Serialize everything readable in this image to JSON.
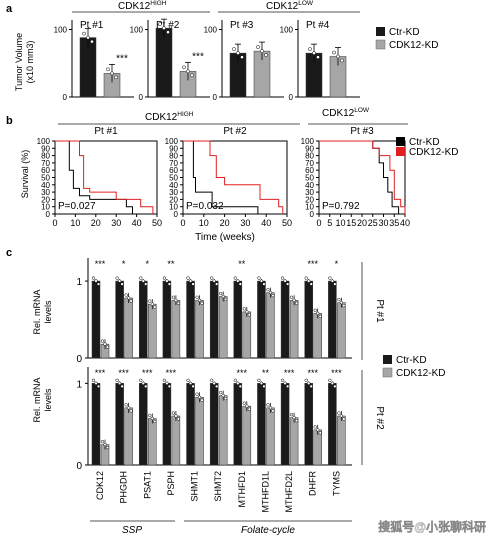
{
  "panels": {
    "a": "a",
    "b": "b",
    "c": "c"
  },
  "colors": {
    "ctr": "#1a1a1a",
    "kd": "#a6a6a6",
    "km_ctr": "#000000",
    "km_kd": "#e02020"
  },
  "panel_a": {
    "group_high": "CDK12",
    "group_high_sup": "HIGH",
    "group_low": "CDK12",
    "group_low_sup": "LOW",
    "ylabel_line1": "Tumor Volume",
    "ylabel_line2": "(x10 mm3)",
    "legend": [
      "Ctr-KD",
      "CDK12-KD"
    ]
  },
  "panel_b": {
    "group_high": "CDK12",
    "group_high_sup": "HIGH",
    "group_low": "CDK12",
    "group_low_sup": "LOW",
    "ylabel": "Survival (%)",
    "xlabel": "Time (weeks)",
    "legend": [
      "Ctr-KD",
      "CDK12-KD"
    ]
  },
  "panel_c": {
    "ylabel_line1": "Rel. mRNA",
    "ylabel_line2": "levels",
    "rows": [
      "Pt #1",
      "Pt #2"
    ],
    "legend": [
      "Ctr-KD",
      "CDK12-KD"
    ],
    "group_ssp": "SSP",
    "group_folate": "Folate-cycle"
  },
  "watermark": "搜狐号@小张聊科研",
  "chart_data": [
    {
      "type": "bar",
      "title": "Pt #1",
      "categories": [
        "Ctr-KD",
        "CDK12-KD"
      ],
      "values": [
        88,
        35
      ],
      "ylim": [
        0,
        120
      ],
      "yticks": [
        0,
        100
      ],
      "significance": "***"
    },
    {
      "type": "bar",
      "title": "Pt #2",
      "categories": [
        "Ctr-KD",
        "CDK12-KD"
      ],
      "values": [
        102,
        38
      ],
      "ylim": [
        0,
        120
      ],
      "yticks": [
        0,
        100
      ],
      "significance": "***"
    },
    {
      "type": "bar",
      "title": "Pt #3",
      "categories": [
        "Ctr-KD",
        "CDK12-KD"
      ],
      "values": [
        65,
        68
      ],
      "ylim": [
        0,
        120
      ],
      "yticks": [
        0,
        100
      ],
      "significance": ""
    },
    {
      "type": "bar",
      "title": "Pt #4",
      "categories": [
        "Ctr-KD",
        "CDK12-KD"
      ],
      "values": [
        65,
        60
      ],
      "ylim": [
        0,
        120
      ],
      "yticks": [
        0,
        100
      ],
      "significance": ""
    },
    {
      "type": "line",
      "title": "Pt #1",
      "xlim": [
        0,
        50
      ],
      "ylim": [
        0,
        100
      ],
      "xticks": [
        0,
        10,
        20,
        30,
        40,
        50
      ],
      "yticks": [
        0,
        10,
        20,
        30,
        40,
        50,
        60,
        70,
        80,
        90,
        100
      ],
      "annotation": "P=0.027",
      "series": [
        {
          "name": "Ctr-KD",
          "x": [
            0,
            7,
            7,
            9,
            9,
            12,
            12,
            17,
            17,
            35,
            35,
            38,
            38
          ],
          "y": [
            100,
            100,
            60,
            60,
            35,
            35,
            25,
            25,
            20,
            20,
            10,
            10,
            0
          ]
        },
        {
          "name": "CDK12-KD",
          "x": [
            0,
            12,
            12,
            14,
            14,
            17,
            17,
            30,
            30,
            42,
            42,
            48,
            48
          ],
          "y": [
            100,
            100,
            80,
            80,
            35,
            35,
            30,
            30,
            20,
            20,
            10,
            10,
            0
          ]
        }
      ]
    },
    {
      "type": "line",
      "title": "Pt #2",
      "xlim": [
        0,
        50
      ],
      "ylim": [
        0,
        100
      ],
      "xticks": [
        0,
        10,
        20,
        30,
        40,
        50
      ],
      "yticks": [
        0,
        10,
        20,
        30,
        40,
        50,
        60,
        70,
        80,
        90,
        100
      ],
      "annotation": "P=0.032",
      "series": [
        {
          "name": "Ctr-KD",
          "x": [
            0,
            5,
            5,
            6,
            6,
            14,
            14,
            36,
            36
          ],
          "y": [
            100,
            100,
            50,
            50,
            30,
            30,
            10,
            10,
            0
          ]
        },
        {
          "name": "CDK12-KD",
          "x": [
            0,
            13,
            13,
            16,
            16,
            20,
            20,
            37,
            37,
            46,
            46,
            48,
            48
          ],
          "y": [
            100,
            100,
            80,
            80,
            50,
            50,
            40,
            40,
            20,
            20,
            10,
            10,
            0
          ]
        }
      ]
    },
    {
      "type": "line",
      "title": "Pt #3",
      "xlim": [
        0,
        40
      ],
      "ylim": [
        0,
        100
      ],
      "xticks": [
        0,
        5,
        10,
        15,
        20,
        25,
        30,
        35,
        40
      ],
      "yticks": [
        0,
        10,
        20,
        30,
        40,
        50,
        60,
        70,
        80,
        90,
        100
      ],
      "annotation": "P=0.792",
      "series": [
        {
          "name": "Ctr-KD",
          "x": [
            0,
            25,
            25,
            28,
            28,
            30,
            30,
            32,
            32,
            34,
            34,
            37,
            37
          ],
          "y": [
            100,
            100,
            90,
            90,
            70,
            70,
            50,
            50,
            30,
            30,
            10,
            10,
            0
          ]
        },
        {
          "name": "CDK12-KD",
          "x": [
            0,
            25,
            25,
            28,
            28,
            33,
            33,
            35,
            35,
            38,
            38,
            40,
            40
          ],
          "y": [
            100,
            100,
            90,
            90,
            80,
            80,
            60,
            60,
            20,
            20,
            10,
            10,
            0
          ]
        }
      ]
    },
    {
      "type": "bar",
      "title": "Pt #1",
      "categories": [
        "CDK12",
        "PHGDH",
        "PSAT1",
        "PSPH",
        "SHMT1",
        "SHMT2",
        "MTHFD1",
        "MTHFD1L",
        "MTHFD2L",
        "DHFR",
        "TYMS"
      ],
      "series": [
        {
          "name": "Ctr-KD",
          "values": [
            1,
            1,
            1,
            1,
            1,
            1,
            1,
            1,
            1,
            1,
            1
          ]
        },
        {
          "name": "CDK12-KD",
          "values": [
            0.18,
            0.78,
            0.7,
            0.75,
            0.75,
            0.8,
            0.6,
            0.85,
            0.75,
            0.58,
            0.72
          ]
        }
      ],
      "significance": [
        "***",
        "*",
        "*",
        "**",
        "",
        "",
        "**",
        "",
        "",
        "***",
        "*"
      ],
      "yticks": [
        0,
        1
      ],
      "ylim": [
        0,
        1.3
      ]
    },
    {
      "type": "bar",
      "title": "Pt #2",
      "categories": [
        "CDK12",
        "PHGDH",
        "PSAT1",
        "PSPH",
        "SHMT1",
        "SHMT2",
        "MTHFD1",
        "MTHFD1L",
        "MTHFD2L",
        "DHFR",
        "TYMS"
      ],
      "series": [
        {
          "name": "Ctr-KD",
          "values": [
            1,
            1,
            1,
            1,
            1,
            1,
            1,
            1,
            1,
            1,
            1
          ]
        },
        {
          "name": "CDK12-KD",
          "values": [
            0.25,
            0.7,
            0.57,
            0.6,
            0.83,
            0.85,
            0.72,
            0.7,
            0.58,
            0.43,
            0.6
          ]
        }
      ],
      "significance": [
        "***",
        "***",
        "***",
        "***",
        "",
        "",
        "***",
        "**",
        "***",
        "***",
        "***"
      ],
      "yticks": [
        0,
        1
      ],
      "ylim": [
        0,
        1.2
      ]
    }
  ]
}
